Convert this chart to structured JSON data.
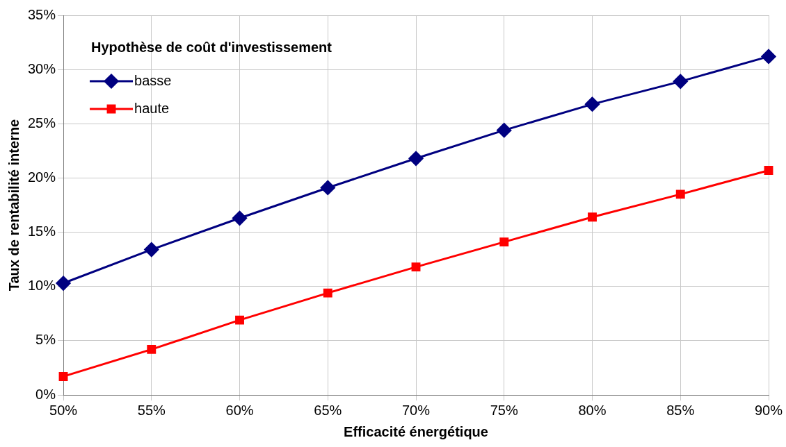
{
  "chart_data": {
    "type": "line",
    "xlabel": "Efficacité énergétique",
    "ylabel": "Taux de rentabilité interne",
    "legend_title": "Hypothèse de coût d'investissement",
    "categories": [
      "50%",
      "55%",
      "60%",
      "65%",
      "70%",
      "75%",
      "80%",
      "85%",
      "90%"
    ],
    "series": [
      {
        "name": "basse",
        "color": "#000080",
        "marker": "diamond",
        "values": [
          10.3,
          13.4,
          16.3,
          19.1,
          21.8,
          24.4,
          26.8,
          28.9,
          31.2
        ]
      },
      {
        "name": "haute",
        "color": "#ff0000",
        "marker": "square",
        "values": [
          1.7,
          4.2,
          6.9,
          9.4,
          11.8,
          14.1,
          16.4,
          18.5,
          20.7
        ]
      }
    ],
    "ylim": [
      0,
      35
    ],
    "yticks": [
      {
        "value": 0,
        "label": "0%"
      },
      {
        "value": 5,
        "label": "5%"
      },
      {
        "value": 10,
        "label": "10%"
      },
      {
        "value": 15,
        "label": "15%"
      },
      {
        "value": 20,
        "label": "20%"
      },
      {
        "value": 25,
        "label": "25%"
      },
      {
        "value": 30,
        "label": "30%"
      },
      {
        "value": 35,
        "label": "35%"
      }
    ],
    "grid": true,
    "legend": "top left",
    "line_style": "solid"
  }
}
